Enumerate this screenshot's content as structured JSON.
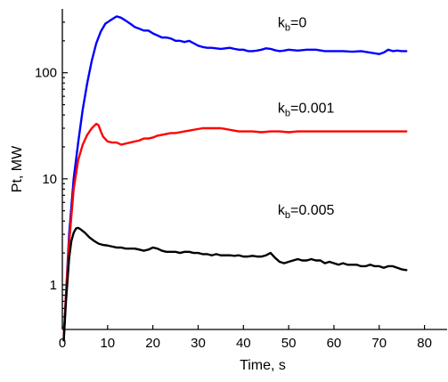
{
  "chart_data": {
    "type": "line",
    "xlabel": "Time, s",
    "ylabel": "Pt, MW",
    "xlim": [
      0,
      85
    ],
    "ylim": [
      0.38,
      400
    ],
    "yscale": "log",
    "xticks": [
      0,
      10,
      20,
      30,
      40,
      50,
      60,
      70,
      80
    ],
    "yticks": [
      1,
      10,
      100
    ],
    "ytick_labels": [
      "1",
      "10",
      "100"
    ],
    "grid": false,
    "series": [
      {
        "name_main": "k",
        "name_sub": "b",
        "name_rest": "=0",
        "color": "#0000ff",
        "points": [
          [
            0.3,
            0.3
          ],
          [
            0.8,
            0.8
          ],
          [
            1.5,
            3
          ],
          [
            2.5,
            10
          ],
          [
            3.5,
            22
          ],
          [
            4.5,
            45
          ],
          [
            5.5,
            80
          ],
          [
            6.5,
            130
          ],
          [
            7.5,
            190
          ],
          [
            8.5,
            245
          ],
          [
            9.5,
            290
          ],
          [
            10.5,
            310
          ],
          [
            11.5,
            330
          ],
          [
            12,
            340
          ],
          [
            13,
            330
          ],
          [
            14,
            310
          ],
          [
            15,
            290
          ],
          [
            16,
            270
          ],
          [
            17,
            260
          ],
          [
            18,
            250
          ],
          [
            19,
            250
          ],
          [
            20,
            235
          ],
          [
            21,
            225
          ],
          [
            22,
            215
          ],
          [
            23,
            215
          ],
          [
            24,
            210
          ],
          [
            25,
            200
          ],
          [
            26,
            200
          ],
          [
            27,
            195
          ],
          [
            28,
            200
          ],
          [
            29,
            190
          ],
          [
            30,
            180
          ],
          [
            31,
            175
          ],
          [
            32,
            172
          ],
          [
            33,
            172
          ],
          [
            34,
            170
          ],
          [
            35,
            168
          ],
          [
            36,
            170
          ],
          [
            37,
            172
          ],
          [
            38,
            168
          ],
          [
            39,
            165
          ],
          [
            40,
            165
          ],
          [
            41,
            160
          ],
          [
            42,
            160
          ],
          [
            43,
            162
          ],
          [
            44,
            165
          ],
          [
            45,
            170
          ],
          [
            46,
            168
          ],
          [
            47,
            163
          ],
          [
            48,
            160
          ],
          [
            49,
            162
          ],
          [
            50,
            165
          ],
          [
            52,
            162
          ],
          [
            54,
            165
          ],
          [
            56,
            165
          ],
          [
            58,
            160
          ],
          [
            60,
            160
          ],
          [
            62,
            160
          ],
          [
            64,
            158
          ],
          [
            66,
            160
          ],
          [
            68,
            155
          ],
          [
            70,
            150
          ],
          [
            71,
            155
          ],
          [
            72,
            165
          ],
          [
            73,
            160
          ],
          [
            74,
            162
          ],
          [
            75,
            160
          ],
          [
            76,
            160
          ]
        ]
      },
      {
        "name_main": "k",
        "name_sub": "b",
        "name_rest": "=0.001",
        "color": "#ff0000",
        "points": [
          [
            0.3,
            0.3
          ],
          [
            0.8,
            0.8
          ],
          [
            1.5,
            2.5
          ],
          [
            2.5,
            8
          ],
          [
            3.5,
            15
          ],
          [
            4.5,
            21
          ],
          [
            5.5,
            26
          ],
          [
            6.5,
            30
          ],
          [
            7.5,
            33
          ],
          [
            8,
            32
          ],
          [
            8.5,
            28
          ],
          [
            9,
            25
          ],
          [
            10,
            22.5
          ],
          [
            11,
            22
          ],
          [
            12,
            22
          ],
          [
            13,
            21
          ],
          [
            14,
            21.5
          ],
          [
            15,
            22
          ],
          [
            16,
            22.5
          ],
          [
            17,
            23
          ],
          [
            18,
            24
          ],
          [
            19,
            24
          ],
          [
            20,
            24.5
          ],
          [
            21,
            25.5
          ],
          [
            22,
            26
          ],
          [
            23,
            26.5
          ],
          [
            24,
            27
          ],
          [
            25,
            27
          ],
          [
            26,
            27.5
          ],
          [
            27,
            28
          ],
          [
            28,
            28.5
          ],
          [
            29,
            29
          ],
          [
            30,
            29.5
          ],
          [
            31,
            30
          ],
          [
            32,
            30
          ],
          [
            33,
            30
          ],
          [
            34,
            30
          ],
          [
            35,
            30
          ],
          [
            36,
            29.5
          ],
          [
            37,
            29
          ],
          [
            38,
            28.5
          ],
          [
            39,
            28
          ],
          [
            40,
            28
          ],
          [
            42,
            28
          ],
          [
            44,
            27.5
          ],
          [
            46,
            28
          ],
          [
            48,
            28
          ],
          [
            50,
            27.5
          ],
          [
            52,
            28
          ],
          [
            54,
            28
          ],
          [
            56,
            28
          ],
          [
            58,
            28
          ],
          [
            60,
            28
          ],
          [
            62,
            28
          ],
          [
            64,
            28
          ],
          [
            66,
            28
          ],
          [
            68,
            28
          ],
          [
            70,
            28
          ],
          [
            72,
            28
          ],
          [
            74,
            28
          ],
          [
            76,
            28
          ]
        ]
      },
      {
        "name_main": "k",
        "name_sub": "b",
        "name_rest": "=0.005",
        "color": "#000000",
        "points": [
          [
            0.3,
            0.3
          ],
          [
            0.8,
            0.7
          ],
          [
            1.5,
            1.8
          ],
          [
            2,
            2.6
          ],
          [
            2.5,
            3.1
          ],
          [
            3,
            3.4
          ],
          [
            3.5,
            3.45
          ],
          [
            4,
            3.35
          ],
          [
            5,
            3.1
          ],
          [
            6,
            2.8
          ],
          [
            7,
            2.6
          ],
          [
            8,
            2.45
          ],
          [
            9,
            2.38
          ],
          [
            10,
            2.35
          ],
          [
            11,
            2.3
          ],
          [
            12,
            2.25
          ],
          [
            13,
            2.25
          ],
          [
            14,
            2.2
          ],
          [
            15,
            2.2
          ],
          [
            16,
            2.2
          ],
          [
            17,
            2.15
          ],
          [
            18,
            2.1
          ],
          [
            19,
            2.15
          ],
          [
            20,
            2.25
          ],
          [
            21,
            2.2
          ],
          [
            22,
            2.1
          ],
          [
            23,
            2.05
          ],
          [
            24,
            2.05
          ],
          [
            25,
            2.05
          ],
          [
            26,
            2.0
          ],
          [
            27,
            2.05
          ],
          [
            28,
            2.05
          ],
          [
            29,
            2.0
          ],
          [
            30,
            2.0
          ],
          [
            31,
            1.95
          ],
          [
            32,
            1.95
          ],
          [
            33,
            1.9
          ],
          [
            34,
            1.95
          ],
          [
            35,
            1.9
          ],
          [
            36,
            1.9
          ],
          [
            37,
            1.9
          ],
          [
            38,
            1.88
          ],
          [
            39,
            1.9
          ],
          [
            40,
            1.85
          ],
          [
            41,
            1.85
          ],
          [
            42,
            1.88
          ],
          [
            43,
            1.85
          ],
          [
            44,
            1.85
          ],
          [
            45,
            1.9
          ],
          [
            46,
            2.0
          ],
          [
            47,
            1.8
          ],
          [
            48,
            1.65
          ],
          [
            49,
            1.6
          ],
          [
            50,
            1.65
          ],
          [
            51,
            1.7
          ],
          [
            52,
            1.75
          ],
          [
            53,
            1.7
          ],
          [
            54,
            1.7
          ],
          [
            55,
            1.75
          ],
          [
            56,
            1.7
          ],
          [
            57,
            1.7
          ],
          [
            58,
            1.6
          ],
          [
            59,
            1.65
          ],
          [
            60,
            1.6
          ],
          [
            61,
            1.55
          ],
          [
            62,
            1.6
          ],
          [
            63,
            1.55
          ],
          [
            64,
            1.55
          ],
          [
            65,
            1.55
          ],
          [
            66,
            1.5
          ],
          [
            67,
            1.5
          ],
          [
            68,
            1.55
          ],
          [
            69,
            1.5
          ],
          [
            70,
            1.5
          ],
          [
            71,
            1.45
          ],
          [
            72,
            1.5
          ],
          [
            73,
            1.5
          ],
          [
            74,
            1.45
          ],
          [
            75,
            1.4
          ],
          [
            76,
            1.38
          ]
        ]
      }
    ]
  }
}
